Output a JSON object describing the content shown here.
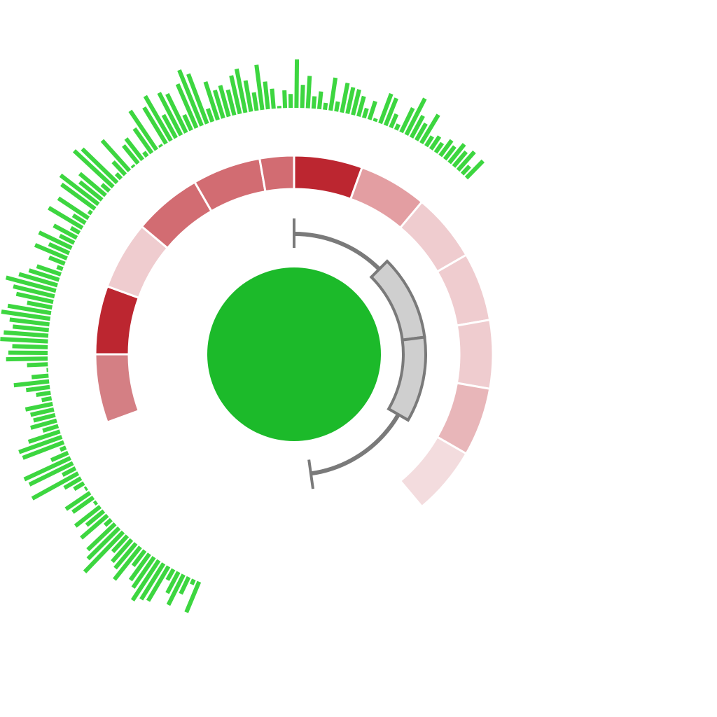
{
  "colors": {
    "background": "#ffffff",
    "bar_track": "#3dd640",
    "core_circle": "#1cba2a",
    "link": "#7a7a7a",
    "link_fill": "#cfcfcf",
    "heat_palette": [
      "#bc2630",
      "#d26c72",
      "#d47f84",
      "#e39ea2",
      "#e8b6b9",
      "#efcccf",
      "#f3dcde"
    ]
  },
  "chart_data": {
    "type": "circular",
    "tracks": [
      {
        "name": "",
        "kind": "heatmap",
        "segments": [
          {
            "start": 0,
            "end": 20,
            "level": 0
          },
          {
            "start": 20,
            "end": 40,
            "level": 3
          },
          {
            "start": 40,
            "end": 60,
            "level": 5
          },
          {
            "start": 60,
            "end": 80,
            "level": 5
          },
          {
            "start": 80,
            "end": 100,
            "level": 5
          },
          {
            "start": 100,
            "end": 120,
            "level": 4
          },
          {
            "start": 120,
            "end": 140,
            "level": 6
          },
          {
            "start": 250,
            "end": 270,
            "level": 2
          },
          {
            "start": 270,
            "end": 290,
            "level": 0
          },
          {
            "start": 290,
            "end": 310,
            "level": 5
          },
          {
            "start": 310,
            "end": 330,
            "level": 1
          },
          {
            "start": 330,
            "end": 350,
            "level": 1
          },
          {
            "start": 350,
            "end": 360,
            "level": 1
          }
        ]
      },
      {
        "name": "",
        "kind": "bar",
        "range": [
          202,
          405
        ],
        "ylim": [
          0,
          1
        ],
        "values": [
          0.43,
          0.07,
          0.24,
          0.44,
          0.31,
          0.16,
          0.52,
          0.55,
          0.62,
          0.48,
          0.42,
          0.25,
          0.54,
          0.42,
          0.38,
          0.28,
          0.72,
          0.57,
          0.49,
          0.11,
          0.45,
          0.29,
          0.41,
          0.04,
          0.33,
          0.38,
          0.03,
          0.15,
          0.25,
          0.68,
          0.19,
          0.63,
          0.66,
          0.24,
          0.08,
          0.57,
          0.59,
          0.43,
          0.21,
          0.35,
          0.29,
          0.31,
          0.36,
          0.13,
          0.19,
          0.31,
          0.46,
          0.22,
          0.02,
          0.27,
          0.54,
          0.51,
          0.46,
          0.62,
          0.58,
          0.47,
          0.52,
          0.64,
          0.57,
          0.33,
          0.49,
          0.55,
          0.67,
          0.52,
          0.41,
          0.33,
          0.08,
          0.22,
          0.45,
          0.29,
          0.47,
          0.21,
          0.34,
          0.13,
          0.51,
          0.19,
          0.47,
          0.05,
          0.54,
          0.62,
          0.37,
          0.44,
          0.13,
          0.69,
          0.63,
          0.09,
          0.23,
          0.53,
          0.03,
          0.3,
          0.35,
          0.07,
          0.39,
          0.61,
          0.03,
          0.55,
          0.67,
          0.34,
          0.62,
          0.56,
          0.22,
          0.62,
          0.78,
          0.69,
          0.18,
          0.52,
          0.38,
          0.42,
          0.34,
          0.51,
          0.58,
          0.41,
          0.24,
          0.59,
          0.36,
          0.26,
          0.03,
          0.23,
          0.18,
          0.63,
          0.3,
          0.42,
          0.16,
          0.23,
          0.09,
          0.43,
          0.13,
          0.39,
          0.35,
          0.34,
          0.27,
          0.13,
          0.25,
          0.04,
          0.41,
          0.38,
          0.19,
          0.08,
          0.35,
          0.53,
          0.32,
          0.25,
          0.43,
          0.15,
          0.2,
          0.15,
          0.25,
          0.21,
          0.31,
          0.25,
          0.32,
          0.14,
          0.31
        ]
      }
    ],
    "links": [
      {
        "from": 0,
        "to": 172,
        "highlight": [
          45,
          120
        ]
      }
    ],
    "core": {
      "kind": "disc"
    }
  }
}
